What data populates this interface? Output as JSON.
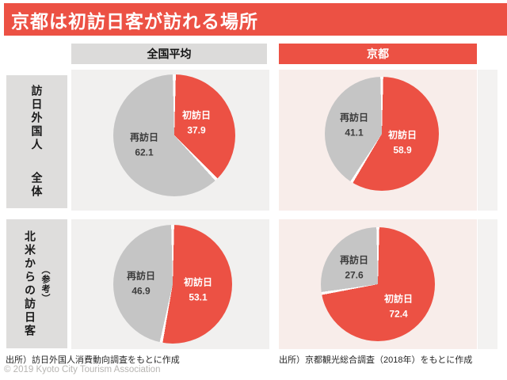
{
  "title": "京都は初訪日客が訪れる場所",
  "columns": {
    "national": "全国平均",
    "kyoto": "京都"
  },
  "rows": {
    "all": {
      "main": "訪日外国人",
      "sub": "全体"
    },
    "north_america": {
      "main": "北米からの訪日客",
      "sub": "（参考）"
    }
  },
  "sources": {
    "national": "出所）訪日外国人消費動向調査をもとに作成",
    "kyoto": "出所）京都観光総合調査（2018年）をもとに作成"
  },
  "copyright": "© 2019 Kyoto City Tourism Association",
  "colors": {
    "accent_red": "#ec5144",
    "pie_gray": "#c5c5c5",
    "panel_gray": "#f1f0ef",
    "panel_pink": "#f8edea"
  },
  "chart_data": [
    {
      "type": "pie",
      "row": "訪日外国人 全体",
      "column": "全国平均",
      "unit": "%",
      "legend_position": "inside",
      "slices": [
        {
          "label": "初訪日",
          "value": 37.9,
          "color": "#ec5144"
        },
        {
          "label": "再訪日",
          "value": 62.1,
          "color": "#c5c5c5"
        }
      ]
    },
    {
      "type": "pie",
      "row": "訪日外国人 全体",
      "column": "京都",
      "unit": "%",
      "legend_position": "inside",
      "slices": [
        {
          "label": "初訪日",
          "value": 58.9,
          "color": "#ec5144"
        },
        {
          "label": "再訪日",
          "value": 41.1,
          "color": "#c5c5c5"
        }
      ]
    },
    {
      "type": "pie",
      "row": "北米からの訪日客（参考）",
      "column": "全国平均",
      "unit": "%",
      "legend_position": "inside",
      "slices": [
        {
          "label": "初訪日",
          "value": 53.1,
          "color": "#ec5144"
        },
        {
          "label": "再訪日",
          "value": 46.9,
          "color": "#c5c5c5"
        }
      ]
    },
    {
      "type": "pie",
      "row": "北米からの訪日客（参考）",
      "column": "京都",
      "unit": "%",
      "legend_position": "inside",
      "slices": [
        {
          "label": "初訪日",
          "value": 72.4,
          "color": "#ec5144"
        },
        {
          "label": "再訪日",
          "value": 27.6,
          "color": "#c5c5c5"
        }
      ]
    }
  ]
}
